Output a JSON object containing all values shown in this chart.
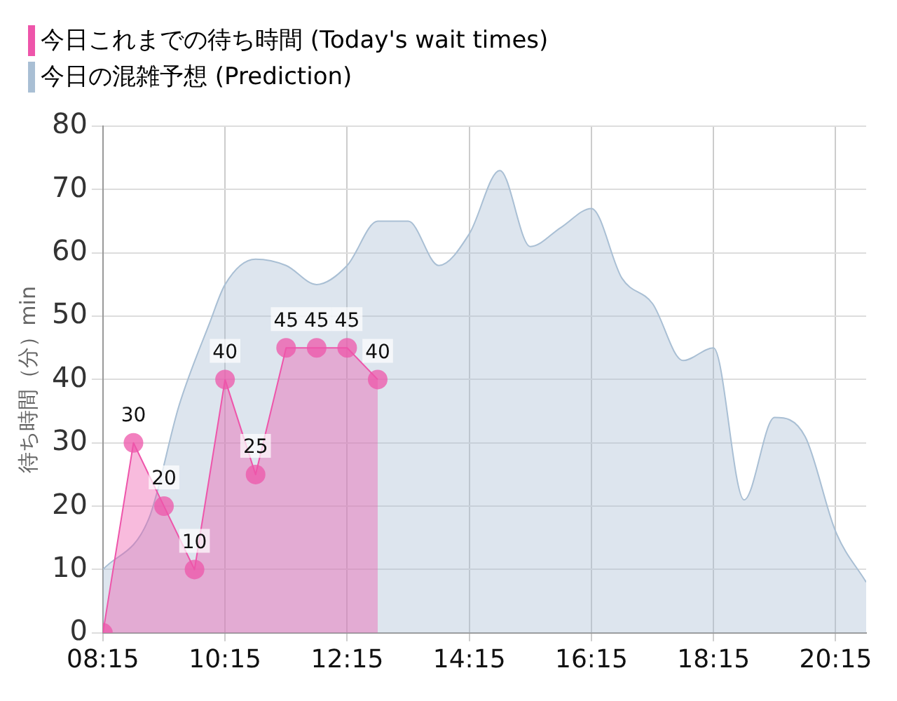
{
  "chart_data": {
    "type": "area",
    "ylabel": "待ち時間（分）min",
    "xlim": [
      8.25,
      20.75
    ],
    "ylim": [
      0,
      80
    ],
    "xticks": [
      {
        "value": 8.25,
        "label": "08:15"
      },
      {
        "value": 10.25,
        "label": "10:15"
      },
      {
        "value": 12.25,
        "label": "12:15"
      },
      {
        "value": 14.25,
        "label": "14:15"
      },
      {
        "value": 16.25,
        "label": "16:15"
      },
      {
        "value": 18.25,
        "label": "18:15"
      },
      {
        "value": 20.25,
        "label": "20:15"
      }
    ],
    "yticks": [
      0,
      10,
      20,
      30,
      40,
      50,
      60,
      70,
      80
    ],
    "grid": true,
    "legend": "top left",
    "marker": "circle",
    "series": [
      {
        "name": "今日これまでの待ち時間 (Today's wait times)",
        "color": "#ee55aa",
        "x": [
          8.25,
          8.75,
          9.25,
          9.75,
          10.25,
          10.75,
          11.25,
          11.75,
          12.25,
          12.75
        ],
        "values": [
          0,
          30,
          20,
          10,
          40,
          25,
          45,
          45,
          45,
          40
        ],
        "value_labels": [
          null,
          "30",
          "20",
          "10",
          "40",
          "25",
          "45",
          "45",
          "45",
          "40"
        ]
      },
      {
        "name": "今日の混雑予想 (Prediction)",
        "color": "#a9bfd4",
        "marker": "none",
        "x": [
          8.25,
          9.0,
          9.5,
          10.0,
          10.25,
          10.75,
          11.25,
          11.75,
          12.25,
          12.75,
          13.25,
          13.75,
          14.25,
          14.75,
          15.25,
          15.75,
          16.25,
          16.75,
          17.25,
          17.75,
          18.25,
          18.75,
          19.25,
          19.75,
          20.25,
          20.75
        ],
        "values": [
          10,
          18,
          36,
          49,
          55,
          59,
          58,
          55,
          58,
          65,
          65,
          58,
          63,
          73,
          61,
          64,
          67,
          56,
          52,
          43,
          45,
          21,
          34,
          31,
          16,
          8
        ]
      }
    ]
  }
}
